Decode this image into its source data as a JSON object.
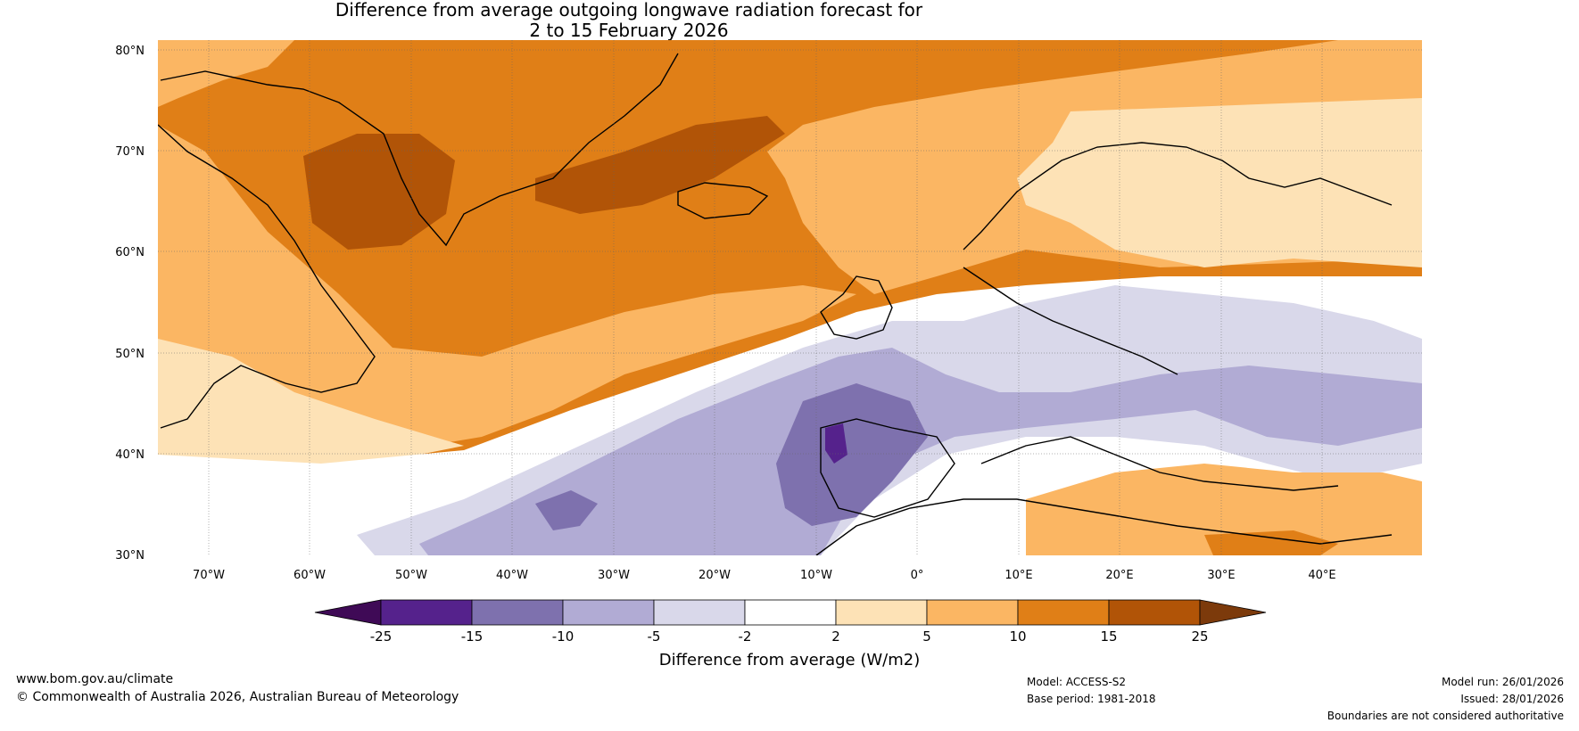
{
  "title_line1": "Difference from average outgoing longwave radiation forecast for",
  "title_line2": "2 to 15 February 2026",
  "lat_labels": [
    "80°N",
    "70°N",
    "60°N",
    "50°N",
    "40°N",
    "30°N"
  ],
  "lon_labels": [
    "70°W",
    "60°W",
    "50°W",
    "40°W",
    "30°W",
    "20°W",
    "10°W",
    "0°",
    "10°E",
    "20°E",
    "30°E",
    "40°E"
  ],
  "legend": {
    "title": "Difference from average (W/m2)",
    "ticks": [
      "-25",
      "-15",
      "-10",
      "-5",
      "-2",
      "2",
      "5",
      "10",
      "15",
      "25"
    ],
    "colors": [
      "#3f0a56",
      "#55228c",
      "#7e71ae",
      "#b1abd4",
      "#d9d8ea",
      "#ffffff",
      "#fde2b6",
      "#fbb663",
      "#e07f17",
      "#b15407",
      "#7c3a0b"
    ]
  },
  "map_colors": {
    "ocean_deep_orange": "#b15407",
    "orange": "#e07f17",
    "light_orange": "#fbb663",
    "pale_orange": "#fde2b6",
    "white": "#ffffff",
    "pale_purple": "#d9d8ea",
    "light_purple": "#b1abd4",
    "purple": "#7e71ae",
    "deep_purple": "#55228c"
  },
  "footer": {
    "website": "www.bom.gov.au/climate",
    "copyright": "© Commonwealth of Australia 2026, Australian Bureau of Meteorology",
    "model": "Model: ACCESS-S2",
    "base_period": "Base period: 1981-2018",
    "model_run": "Model run: 26/01/2026",
    "issued": "Issued: 28/01/2026",
    "disclaimer": "Boundaries are not considered authoritative"
  }
}
